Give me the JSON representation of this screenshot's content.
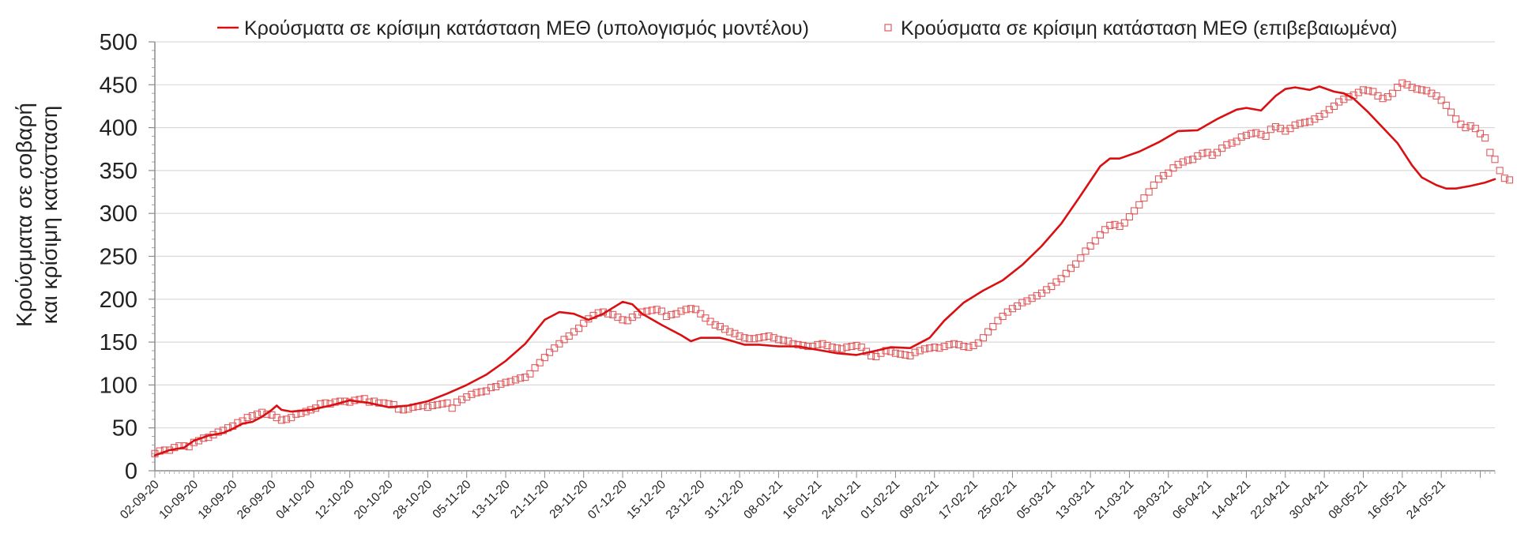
{
  "chart_data": {
    "type": "line",
    "title": "",
    "xlabel": "",
    "ylabel_lines": [
      "Κρούσματα σε σοβαρή",
      "και κρίσιμη κατάσταση"
    ],
    "ylim": [
      0,
      500
    ],
    "y_ticks": [
      "0",
      "50",
      "100",
      "150",
      "200",
      "250",
      "300",
      "350",
      "400",
      "450",
      "500"
    ],
    "x_start": "2020-09-02",
    "x_end": "2021-06-04",
    "x_tick_labels": [
      "02-09-20",
      "10-09-20",
      "18-09-20",
      "26-09-20",
      "04-10-20",
      "12-10-20",
      "20-10-20",
      "28-10-20",
      "05-11-20",
      "13-11-20",
      "21-11-20",
      "29-11-20",
      "07-12-20",
      "15-12-20",
      "23-12-20",
      "31-12-20",
      "08-01-21",
      "16-01-21",
      "24-01-21",
      "01-02-21",
      "09-02-21",
      "17-02-21",
      "25-02-21",
      "05-03-21",
      "13-03-21",
      "21-03-21",
      "29-03-21",
      "06-04-21",
      "14-04-21",
      "22-04-21",
      "30-04-21",
      "08-05-21",
      "16-05-21",
      "24-05-21"
    ],
    "grid": true,
    "legend_placement": "top",
    "series": [
      {
        "name": "Κρούσματα σε κρίσιμη κατάσταση ΜΕΘ (υπολογισμός μοντέλου)",
        "kind": "line",
        "color": "#d90f12",
        "points": [
          [
            "2020-09-02",
            18
          ],
          [
            "2020-09-05",
            24
          ],
          [
            "2020-09-08",
            27
          ],
          [
            "2020-09-10",
            35
          ],
          [
            "2020-09-13",
            41
          ],
          [
            "2020-09-16",
            44
          ],
          [
            "2020-09-18",
            49
          ],
          [
            "2020-09-20",
            55
          ],
          [
            "2020-09-22",
            57
          ],
          [
            "2020-09-24",
            63
          ],
          [
            "2020-09-26",
            71
          ],
          [
            "2020-09-27",
            76
          ],
          [
            "2020-09-28",
            71
          ],
          [
            "2020-09-30",
            69
          ],
          [
            "2020-10-04",
            71
          ],
          [
            "2020-10-08",
            76
          ],
          [
            "2020-10-12",
            82
          ],
          [
            "2020-10-16",
            79
          ],
          [
            "2020-10-20",
            74
          ],
          [
            "2020-10-24",
            76
          ],
          [
            "2020-10-28",
            81
          ],
          [
            "2020-11-01",
            90
          ],
          [
            "2020-11-05",
            100
          ],
          [
            "2020-11-09",
            112
          ],
          [
            "2020-11-13",
            128
          ],
          [
            "2020-11-17",
            148
          ],
          [
            "2020-11-21",
            176
          ],
          [
            "2020-11-24",
            185
          ],
          [
            "2020-11-27",
            183
          ],
          [
            "2020-11-30",
            176
          ],
          [
            "2020-12-03",
            183
          ],
          [
            "2020-12-05",
            190
          ],
          [
            "2020-12-07",
            197
          ],
          [
            "2020-12-09",
            194
          ],
          [
            "2020-12-11",
            183
          ],
          [
            "2020-12-15",
            170
          ],
          [
            "2020-12-19",
            158
          ],
          [
            "2020-12-21",
            151
          ],
          [
            "2020-12-23",
            155
          ],
          [
            "2020-12-27",
            155
          ],
          [
            "2020-12-29",
            152
          ],
          [
            "2021-01-01",
            147
          ],
          [
            "2021-01-04",
            147
          ],
          [
            "2021-01-08",
            145
          ],
          [
            "2021-01-12",
            145
          ],
          [
            "2021-01-16",
            141
          ],
          [
            "2021-01-20",
            137
          ],
          [
            "2021-01-24",
            135
          ],
          [
            "2021-01-28",
            140
          ],
          [
            "2021-01-31",
            144
          ],
          [
            "2021-02-04",
            143
          ],
          [
            "2021-02-08",
            155
          ],
          [
            "2021-02-11",
            175
          ],
          [
            "2021-02-15",
            196
          ],
          [
            "2021-02-19",
            210
          ],
          [
            "2021-02-23",
            222
          ],
          [
            "2021-02-27",
            240
          ],
          [
            "2021-03-03",
            262
          ],
          [
            "2021-03-07",
            288
          ],
          [
            "2021-03-11",
            321
          ],
          [
            "2021-03-15",
            355
          ],
          [
            "2021-03-17",
            364
          ],
          [
            "2021-03-19",
            364
          ],
          [
            "2021-03-23",
            372
          ],
          [
            "2021-03-27",
            383
          ],
          [
            "2021-03-31",
            396
          ],
          [
            "2021-04-04",
            397
          ],
          [
            "2021-04-08",
            410
          ],
          [
            "2021-04-12",
            421
          ],
          [
            "2021-04-14",
            423
          ],
          [
            "2021-04-17",
            420
          ],
          [
            "2021-04-20",
            437
          ],
          [
            "2021-04-22",
            445
          ],
          [
            "2021-04-24",
            447
          ],
          [
            "2021-04-27",
            444
          ],
          [
            "2021-04-29",
            448
          ],
          [
            "2021-05-02",
            442
          ],
          [
            "2021-05-04",
            440
          ],
          [
            "2021-05-06",
            434
          ],
          [
            "2021-05-09",
            418
          ],
          [
            "2021-05-12",
            400
          ],
          [
            "2021-05-15",
            382
          ],
          [
            "2021-05-18",
            356
          ],
          [
            "2021-05-20",
            342
          ],
          [
            "2021-05-23",
            333
          ],
          [
            "2021-05-25",
            329
          ],
          [
            "2021-05-27",
            329
          ],
          [
            "2021-05-30",
            332
          ],
          [
            "2021-06-02",
            336
          ],
          [
            "2021-06-04",
            340
          ]
        ]
      },
      {
        "name": "Κρούσματα σε κρίσιμη κατάσταση ΜΕΘ (επιβεβαιωμένα)",
        "kind": "markers",
        "color": "#d90f12",
        "start": "2020-09-02",
        "values": [
          20,
          23,
          24,
          24,
          27,
          29,
          29,
          28,
          33,
          35,
          38,
          39,
          42,
          45,
          47,
          50,
          52,
          56,
          58,
          62,
          64,
          66,
          68,
          66,
          65,
          62,
          59,
          60,
          62,
          66,
          67,
          69,
          71,
          73,
          78,
          79,
          78,
          80,
          81,
          81,
          80,
          82,
          83,
          84,
          80,
          81,
          79,
          79,
          78,
          77,
          72,
          71,
          72,
          74,
          75,
          76,
          74,
          76,
          77,
          78,
          79,
          73,
          80,
          83,
          86,
          89,
          91,
          92,
          93,
          97,
          98,
          101,
          103,
          104,
          106,
          108,
          109,
          113,
          120,
          126,
          132,
          138,
          143,
          148,
          153,
          157,
          162,
          166,
          172,
          177,
          181,
          184,
          185,
          183,
          182,
          179,
          176,
          175,
          179,
          182,
          185,
          186,
          187,
          188,
          186,
          180,
          182,
          183,
          186,
          188,
          189,
          188,
          183,
          178,
          174,
          170,
          168,
          165,
          162,
          160,
          157,
          155,
          154,
          154,
          155,
          156,
          157,
          155,
          153,
          152,
          151,
          148,
          147,
          146,
          145,
          145,
          147,
          148,
          146,
          144,
          143,
          142,
          144,
          145,
          146,
          144,
          139,
          134,
          133,
          137,
          140,
          139,
          137,
          136,
          135,
          134,
          138,
          140,
          142,
          143,
          144,
          143,
          145,
          147,
          148,
          147,
          145,
          144,
          146,
          149,
          155,
          162,
          168,
          175,
          180,
          185,
          189,
          192,
          196,
          198,
          201,
          204,
          207,
          211,
          215,
          220,
          224,
          230,
          236,
          241,
          248,
          256,
          262,
          268,
          275,
          281,
          286,
          287,
          285,
          289,
          296,
          303,
          310,
          318,
          325,
          333,
          340,
          344,
          347,
          353,
          357,
          360,
          362,
          363,
          367,
          370,
          371,
          368,
          371,
          376,
          380,
          382,
          384,
          389,
          391,
          393,
          394,
          392,
          390,
          398,
          401,
          399,
          396,
          399,
          403,
          405,
          406,
          407,
          410,
          413,
          416,
          421,
          425,
          430,
          433,
          436,
          438,
          441,
          444,
          443,
          442,
          437,
          434,
          436,
          440,
          447,
          452,
          450,
          447,
          445,
          444,
          443,
          440,
          437,
          432,
          426,
          418,
          410,
          404,
          400,
          402,
          399,
          393,
          388,
          371,
          363,
          350,
          341,
          339
        ]
      }
    ]
  }
}
